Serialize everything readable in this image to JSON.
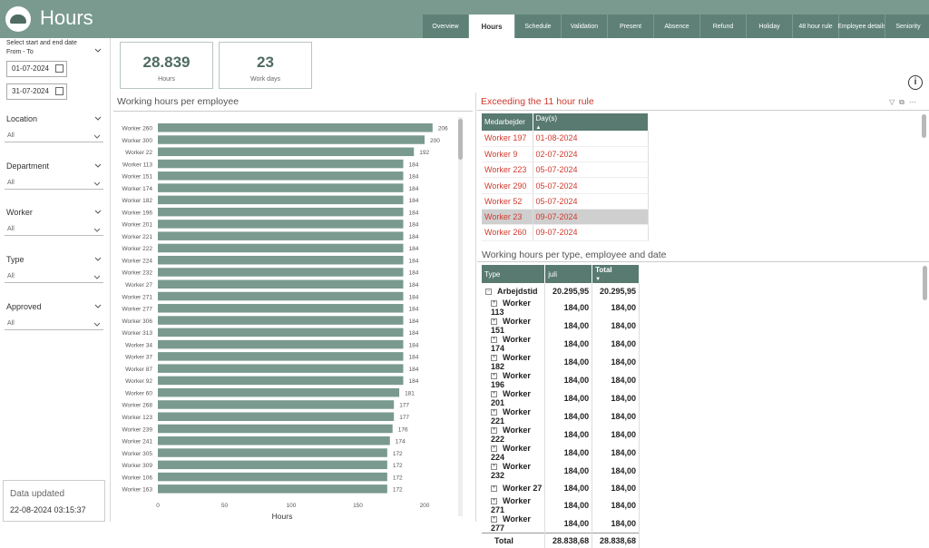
{
  "header": {
    "title": "Hours",
    "tabs": [
      {
        "label": "Overview",
        "active": false
      },
      {
        "label": "Hours",
        "active": true
      },
      {
        "label": "Schedule",
        "active": false
      },
      {
        "label": "Validation",
        "active": false
      },
      {
        "label": "Present",
        "active": false
      },
      {
        "label": "Absence",
        "active": false
      },
      {
        "label": "Refund",
        "active": false
      },
      {
        "label": "Holiday",
        "active": false
      },
      {
        "label": "48 hour rule",
        "active": false
      },
      {
        "label": "Employee details",
        "active": false
      },
      {
        "label": "Seniority",
        "active": false
      }
    ]
  },
  "sidebar": {
    "date_heading": "Select start and end date",
    "range_label": "From - To",
    "start_date": "01-07-2024",
    "end_date": "31-07-2024",
    "filters": [
      {
        "label": "Location",
        "value": "All"
      },
      {
        "label": "Department",
        "value": "All"
      },
      {
        "label": "Worker",
        "value": "All"
      },
      {
        "label": "Type",
        "value": "All"
      },
      {
        "label": "Approved",
        "value": "All"
      }
    ],
    "data_updated_label": "Data updated",
    "data_updated_value": "22-08-2024 03:15:37"
  },
  "kpis": [
    {
      "value": "28.839",
      "label": "Hours"
    },
    {
      "value": "23",
      "label": "Work days"
    }
  ],
  "bar_panel": {
    "title": "Working hours per employee"
  },
  "chart_data": {
    "type": "bar",
    "orientation": "horizontal",
    "title": "Working hours per employee",
    "xlabel": "Hours",
    "ylabel": "",
    "xlim": [
      0,
      200
    ],
    "xticks": [
      0,
      50,
      100,
      150,
      200
    ],
    "bar_color": "#7a9a8f",
    "categories": [
      "Worker 260",
      "Worker 300",
      "Worker 22",
      "Worker 113",
      "Worker 151",
      "Worker 174",
      "Worker 182",
      "Worker 196",
      "Worker 201",
      "Worker 221",
      "Worker 222",
      "Worker 224",
      "Worker 232",
      "Worker 27",
      "Worker 271",
      "Worker 277",
      "Worker 306",
      "Worker 313",
      "Worker 34",
      "Worker 37",
      "Worker 87",
      "Worker 92",
      "Worker 60",
      "Worker 268",
      "Worker 123",
      "Worker 239",
      "Worker 241",
      "Worker 305",
      "Worker 309",
      "Worker 106",
      "Worker 163"
    ],
    "values": [
      206,
      200,
      192,
      184,
      184,
      184,
      184,
      184,
      184,
      184,
      184,
      184,
      184,
      184,
      184,
      184,
      184,
      184,
      184,
      184,
      184,
      184,
      181,
      177,
      177,
      176,
      174,
      172,
      172,
      172,
      172
    ],
    "grid": false
  },
  "excess": {
    "title": "Exceeding the 11 hour rule",
    "columns": [
      "Medarbejder",
      "Day(s)"
    ],
    "rows": [
      [
        "Worker 197",
        "01-08-2024"
      ],
      [
        "Worker 9",
        "02-07-2024"
      ],
      [
        "Worker 223",
        "05-07-2024"
      ],
      [
        "Worker 290",
        "05-07-2024"
      ],
      [
        "Worker 52",
        "05-07-2024"
      ],
      [
        "Worker 23",
        "09-07-2024"
      ],
      [
        "Worker 260",
        "09-07-2024"
      ]
    ],
    "selected_row": 5
  },
  "matrix": {
    "title": "Working hours per type, employee and date",
    "columns": [
      "Type",
      "juli",
      "Total"
    ],
    "group": {
      "label": "Arbejdstid",
      "juli": "20.295,95",
      "total": "20.295,95"
    },
    "rows": [
      {
        "label": "Worker 113",
        "juli": "184,00",
        "total": "184,00"
      },
      {
        "label": "Worker 151",
        "juli": "184,00",
        "total": "184,00"
      },
      {
        "label": "Worker 174",
        "juli": "184,00",
        "total": "184,00"
      },
      {
        "label": "Worker 182",
        "juli": "184,00",
        "total": "184,00"
      },
      {
        "label": "Worker 196",
        "juli": "184,00",
        "total": "184,00"
      },
      {
        "label": "Worker 201",
        "juli": "184,00",
        "total": "184,00"
      },
      {
        "label": "Worker 221",
        "juli": "184,00",
        "total": "184,00"
      },
      {
        "label": "Worker 222",
        "juli": "184,00",
        "total": "184,00"
      },
      {
        "label": "Worker 224",
        "juli": "184,00",
        "total": "184,00"
      },
      {
        "label": "Worker 232",
        "juli": "184,00",
        "total": "184,00"
      },
      {
        "label": "Worker 27",
        "juli": "184,00",
        "total": "184,00"
      },
      {
        "label": "Worker 271",
        "juli": "184,00",
        "total": "184,00"
      },
      {
        "label": "Worker 277",
        "juli": "184,00",
        "total": "184,00"
      }
    ],
    "total": {
      "label": "Total",
      "juli": "28.838,68",
      "total": "28.838,68"
    }
  },
  "colors": {
    "header": "#7a9a8f",
    "tab": "#5e8076",
    "table_header": "#587a70",
    "alert": "#d03a2e",
    "kpi_value": "#4f6b62"
  }
}
